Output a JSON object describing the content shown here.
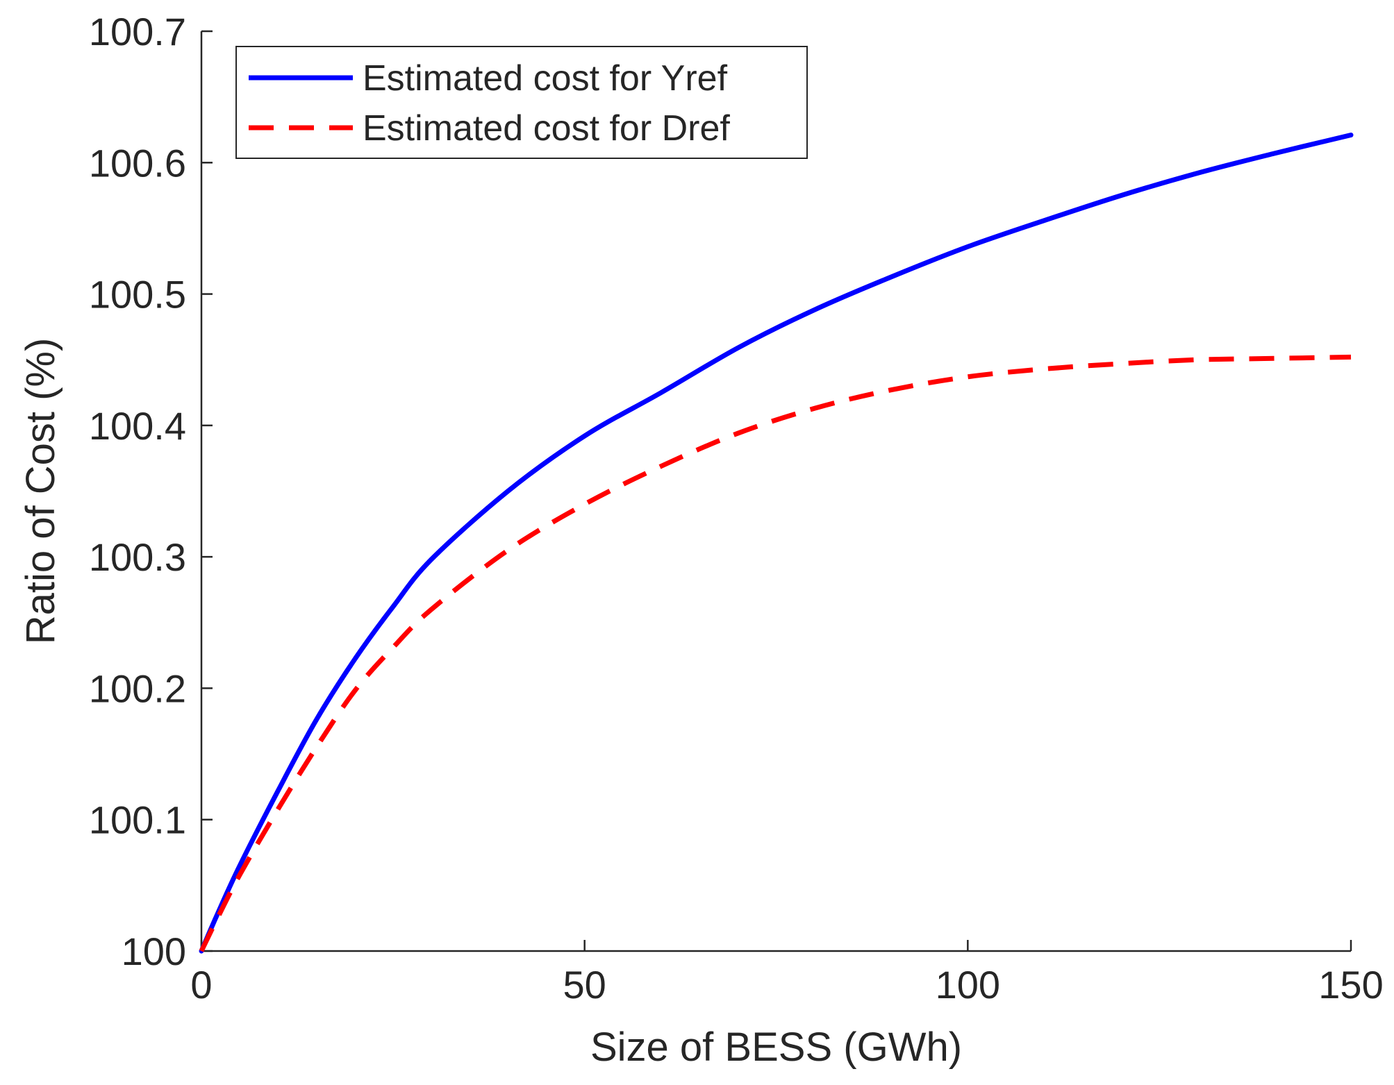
{
  "chart_data": {
    "type": "line",
    "title": "",
    "xlabel": "Size of BESS (GWh)",
    "ylabel": "Ratio of Cost (%)",
    "xlim": [
      0,
      150
    ],
    "ylim": [
      100,
      100.7
    ],
    "xticks": [
      0,
      50,
      100,
      150
    ],
    "xtick_labels": [
      "0",
      "50",
      "100",
      "150"
    ],
    "yticks": [
      100,
      100.1,
      100.2,
      100.3,
      100.4,
      100.5,
      100.6,
      100.7
    ],
    "ytick_labels": [
      "100",
      "100.1",
      "100.2",
      "100.3",
      "100.4",
      "100.5",
      "100.6",
      "100.7"
    ],
    "grid": false,
    "legend_position": "top-left",
    "series": [
      {
        "name": "Estimated cost for Yref",
        "color": "#0000ff",
        "style": "solid",
        "x": [
          0,
          2,
          5,
          10,
          15,
          20,
          25,
          30,
          40,
          50,
          60,
          70,
          80,
          90,
          100,
          110,
          120,
          130,
          140,
          150
        ],
        "y": [
          100.0,
          100.027,
          100.065,
          100.122,
          100.176,
          100.222,
          100.262,
          100.298,
          100.35,
          100.392,
          100.425,
          100.459,
          100.488,
          100.513,
          100.536,
          100.556,
          100.575,
          100.592,
          100.607,
          100.621
        ]
      },
      {
        "name": "Estimated cost for Dref",
        "color": "#ff0000",
        "style": "dashed",
        "x": [
          0,
          2,
          5,
          10,
          15,
          20,
          25,
          30,
          40,
          50,
          60,
          70,
          80,
          90,
          100,
          110,
          120,
          130,
          140,
          150
        ],
        "y": [
          100.0,
          100.024,
          100.058,
          100.108,
          100.155,
          100.198,
          100.231,
          100.26,
          100.305,
          100.34,
          100.369,
          100.394,
          100.413,
          100.427,
          100.437,
          100.443,
          100.447,
          100.45,
          100.451,
          100.452
        ]
      }
    ]
  }
}
